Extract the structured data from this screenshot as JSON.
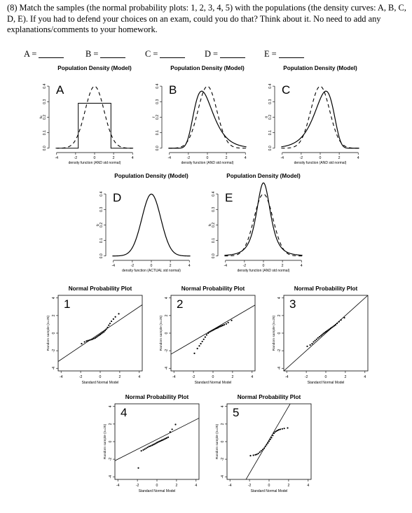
{
  "question": {
    "text": "(8) Match the samples (the normal probability plots: 1, 2, 3, 4, 5) with the populations (the density curves: A, B, C, D, E). If you had to defend your choices on an exam, could you do that? Think about it. No need to add any explanations/comments to your homework."
  },
  "answer_blanks": [
    {
      "label": "A ="
    },
    {
      "label": "B ="
    },
    {
      "label": "C ="
    },
    {
      "label": "D ="
    },
    {
      "label": "E ="
    }
  ],
  "density_panels": [
    {
      "letter": "A",
      "title": "Population Density (Model)",
      "xlabel": "density function (AND std normal)",
      "ylabel": "fu",
      "xticks": [
        "-4",
        "-2",
        "0",
        "2",
        "4"
      ],
      "yticks": [
        "0.0",
        "0.1",
        "0.2",
        "0.3",
        "0.4"
      ]
    },
    {
      "letter": "B",
      "title": "Population Density (Model)",
      "xlabel": "density function (AND std normal)",
      "ylabel": "f",
      "xticks": [
        "-4",
        "-2",
        "0",
        "2",
        "4"
      ],
      "yticks": [
        "0.0",
        "0.1",
        "0.2",
        "0.3",
        "0.4"
      ]
    },
    {
      "letter": "C",
      "title": "Population Density (Model)",
      "xlabel": "density function (AND std normal)",
      "ylabel": "fl",
      "xticks": [
        "-4",
        "-2",
        "0",
        "2",
        "4"
      ],
      "yticks": [
        "0.0",
        "0.1",
        "0.2",
        "0.3",
        "0.4"
      ]
    },
    {
      "letter": "D",
      "title": "Population Density (Model)",
      "xlabel": "density function (ACTUAL std normal)",
      "ylabel": "fz",
      "xticks": [
        "-4",
        "-2",
        "0",
        "2",
        "4"
      ],
      "yticks": [
        "0.0",
        "0.1",
        "0.2",
        "0.3",
        "0.4"
      ]
    },
    {
      "letter": "E",
      "title": "Population Density (Model)",
      "xlabel": "density function (AND std normal)",
      "ylabel": "fs",
      "xticks": [
        "-4",
        "-2",
        "0",
        "2",
        "4"
      ],
      "yticks": [
        "0.0",
        "0.1",
        "0.2",
        "0.3",
        "0.4"
      ]
    }
  ],
  "qq_panels": [
    {
      "number": "1",
      "title": "Normal Probability Plot",
      "xlabel": "Standard Normal Model",
      "ylabel": "Random sample (n=25)",
      "xticks": [
        "-4",
        "-2",
        "0",
        "2",
        "4"
      ],
      "yticks": [
        "-4",
        "-2",
        "0",
        "2",
        "4"
      ]
    },
    {
      "number": "2",
      "title": "Normal Probability Plot",
      "xlabel": "Standard Normal Model",
      "ylabel": "Random sample (n=25)",
      "xticks": [
        "-4",
        "-2",
        "0",
        "2",
        "4"
      ],
      "yticks": [
        "-4",
        "-2",
        "0",
        "2",
        "4"
      ]
    },
    {
      "number": "3",
      "title": "Normal Probability Plot",
      "xlabel": "Standard Normal Model",
      "ylabel": "Random sample (n=25)",
      "xticks": [
        "-4",
        "-2",
        "0",
        "2",
        "4"
      ],
      "yticks": [
        "-4",
        "-2",
        "0",
        "2",
        "4"
      ]
    },
    {
      "number": "4",
      "title": "Normal Probability Plot",
      "xlabel": "Standard Normal Model",
      "ylabel": "Random sample (n=25)",
      "xticks": [
        "-4",
        "-2",
        "0",
        "2",
        "4"
      ],
      "yticks": [
        "-4",
        "-2",
        "0",
        "2",
        "4"
      ]
    },
    {
      "number": "5",
      "title": "Normal Probability Plot",
      "xlabel": "Standard Normal Model",
      "ylabel": "Random sample (n=25)",
      "xticks": [
        "-4",
        "-2",
        "0",
        "2",
        "4"
      ],
      "yticks": [
        "-4",
        "-2",
        "0",
        "2",
        "4"
      ]
    }
  ],
  "chart_data": [
    {
      "type": "line",
      "panel": "A",
      "x_range": [
        -4.5,
        4.5
      ],
      "ylim": [
        0,
        0.45
      ],
      "series": [
        {
          "style": "solid",
          "values_description_points": [
            [
              -4,
              0
            ],
            [
              -2,
              0
            ],
            [
              -2,
              0.29
            ],
            [
              2,
              0.29
            ],
            [
              2,
              0
            ],
            [
              4,
              0
            ]
          ]
        },
        {
          "style": "dashed",
          "distribution": "standard normal"
        }
      ]
    },
    {
      "type": "line",
      "panel": "B",
      "x_range": [
        -4.5,
        4.5
      ],
      "ylim": [
        0,
        0.45
      ],
      "series": [
        {
          "style": "solid",
          "peak_x": -0.6,
          "peak_y": 0.37,
          "skew": "right"
        },
        {
          "style": "dashed",
          "distribution": "standard normal"
        }
      ]
    },
    {
      "type": "line",
      "panel": "C",
      "x_range": [
        -4.5,
        4.5
      ],
      "ylim": [
        0,
        0.45
      ],
      "series": [
        {
          "style": "solid",
          "peak_x": 0.6,
          "peak_y": 0.37,
          "skew": "left"
        },
        {
          "style": "dashed",
          "distribution": "standard normal"
        }
      ]
    },
    {
      "type": "line",
      "panel": "D",
      "x_range": [
        -4.5,
        4.5
      ],
      "ylim": [
        0,
        0.45
      ],
      "series": [
        {
          "style": "solid",
          "distribution": "standard normal"
        }
      ]
    },
    {
      "type": "line",
      "panel": "E",
      "x_range": [
        -4.5,
        4.5
      ],
      "ylim": [
        0,
        0.45
      ],
      "series": [
        {
          "style": "solid",
          "peak_y": 0.42,
          "tails": "heavy"
        },
        {
          "style": "dashed",
          "distribution": "standard normal"
        }
      ]
    },
    {
      "type": "scatter",
      "panel": "1",
      "xlim": [
        -4,
        4
      ],
      "ylim": [
        -4,
        4
      ],
      "points": [
        [
          -1.9,
          -1.2
        ],
        [
          -1.6,
          -1.0
        ],
        [
          -1.4,
          -0.9
        ],
        [
          -1.25,
          -0.85
        ],
        [
          -1.1,
          -0.8
        ],
        [
          -0.95,
          -0.75
        ],
        [
          -0.8,
          -0.7
        ],
        [
          -0.65,
          -0.62
        ],
        [
          -0.5,
          -0.55
        ],
        [
          -0.38,
          -0.45
        ],
        [
          -0.25,
          -0.35
        ],
        [
          -0.12,
          -0.25
        ],
        [
          0,
          -0.15
        ],
        [
          0.12,
          -0.05
        ],
        [
          0.25,
          0.05
        ],
        [
          0.38,
          0.15
        ],
        [
          0.5,
          0.3
        ],
        [
          0.62,
          0.45
        ],
        [
          0.75,
          0.65
        ],
        [
          0.88,
          0.9
        ],
        [
          1.0,
          1.1
        ],
        [
          1.15,
          1.35
        ],
        [
          1.35,
          1.6
        ],
        [
          1.55,
          1.85
        ],
        [
          1.9,
          2.2
        ]
      ],
      "ref_line": [
        [
          -4,
          -3.0
        ],
        [
          4,
          3.0
        ]
      ]
    },
    {
      "type": "scatter",
      "panel": "2",
      "xlim": [
        -4,
        4
      ],
      "ylim": [
        -4,
        4
      ],
      "points": [
        [
          -1.9,
          -2.3
        ],
        [
          -1.6,
          -1.75
        ],
        [
          -1.4,
          -1.45
        ],
        [
          -1.25,
          -1.2
        ],
        [
          -1.1,
          -0.95
        ],
        [
          -0.95,
          -0.7
        ],
        [
          -0.8,
          -0.45
        ],
        [
          -0.65,
          -0.2
        ],
        [
          -0.5,
          0.0
        ],
        [
          -0.38,
          0.12
        ],
        [
          -0.25,
          0.2
        ],
        [
          -0.12,
          0.28
        ],
        [
          0,
          0.35
        ],
        [
          0.12,
          0.42
        ],
        [
          0.25,
          0.5
        ],
        [
          0.38,
          0.56
        ],
        [
          0.5,
          0.62
        ],
        [
          0.62,
          0.7
        ],
        [
          0.75,
          0.76
        ],
        [
          0.88,
          0.82
        ],
        [
          1.0,
          0.88
        ],
        [
          1.15,
          0.95
        ],
        [
          1.35,
          1.05
        ],
        [
          1.55,
          1.2
        ],
        [
          1.9,
          1.45
        ]
      ],
      "ref_line": [
        [
          -4,
          -2.2
        ],
        [
          4,
          3.0
        ]
      ]
    },
    {
      "type": "scatter",
      "panel": "3",
      "xlim": [
        -4,
        4
      ],
      "ylim": [
        -4,
        4
      ],
      "points": [
        [
          -1.9,
          -1.5
        ],
        [
          -1.6,
          -1.35
        ],
        [
          -1.4,
          -1.2
        ],
        [
          -1.25,
          -1.0
        ],
        [
          -1.1,
          -0.85
        ],
        [
          -0.95,
          -0.7
        ],
        [
          -0.8,
          -0.55
        ],
        [
          -0.65,
          -0.42
        ],
        [
          -0.5,
          -0.3
        ],
        [
          -0.38,
          -0.18
        ],
        [
          -0.25,
          -0.05
        ],
        [
          -0.12,
          0.05
        ],
        [
          0,
          0.15
        ],
        [
          0.12,
          0.25
        ],
        [
          0.25,
          0.35
        ],
        [
          0.38,
          0.45
        ],
        [
          0.5,
          0.55
        ],
        [
          0.62,
          0.65
        ],
        [
          0.75,
          0.75
        ],
        [
          0.88,
          0.85
        ],
        [
          1.0,
          0.95
        ],
        [
          1.15,
          1.1
        ],
        [
          1.35,
          1.3
        ],
        [
          1.55,
          1.5
        ],
        [
          1.9,
          1.75
        ]
      ],
      "ref_line": [
        [
          -4,
          -4.0
        ],
        [
          4,
          4.0
        ]
      ]
    },
    {
      "type": "scatter",
      "panel": "4",
      "xlim": [
        -4,
        4
      ],
      "ylim": [
        -4,
        4
      ],
      "points": [
        [
          -1.9,
          -3.0
        ],
        [
          -1.6,
          -1.05
        ],
        [
          -1.4,
          -0.95
        ],
        [
          -1.25,
          -0.85
        ],
        [
          -1.1,
          -0.75
        ],
        [
          -0.95,
          -0.65
        ],
        [
          -0.8,
          -0.55
        ],
        [
          -0.65,
          -0.5
        ],
        [
          -0.5,
          -0.42
        ],
        [
          -0.38,
          -0.35
        ],
        [
          -0.25,
          -0.28
        ],
        [
          -0.12,
          -0.2
        ],
        [
          0,
          -0.12
        ],
        [
          0.12,
          -0.05
        ],
        [
          0.25,
          0.02
        ],
        [
          0.38,
          0.08
        ],
        [
          0.5,
          0.15
        ],
        [
          0.62,
          0.2
        ],
        [
          0.75,
          0.28
        ],
        [
          0.88,
          0.35
        ],
        [
          1.0,
          0.42
        ],
        [
          1.15,
          0.5
        ],
        [
          1.35,
          1.1
        ],
        [
          1.55,
          1.4
        ],
        [
          1.9,
          1.95
        ]
      ],
      "ref_line": [
        [
          -4,
          -2.0
        ],
        [
          4,
          2.5
        ]
      ]
    },
    {
      "type": "scatter",
      "panel": "5",
      "xlim": [
        -4,
        4
      ],
      "ylim": [
        -4,
        4
      ],
      "points": [
        [
          -1.9,
          -1.6
        ],
        [
          -1.6,
          -1.55
        ],
        [
          -1.4,
          -1.5
        ],
        [
          -1.25,
          -1.45
        ],
        [
          -1.1,
          -1.35
        ],
        [
          -0.95,
          -1.2
        ],
        [
          -0.8,
          -1.05
        ],
        [
          -0.65,
          -0.9
        ],
        [
          -0.5,
          -0.75
        ],
        [
          -0.38,
          -0.55
        ],
        [
          -0.25,
          -0.35
        ],
        [
          -0.12,
          -0.15
        ],
        [
          0,
          0.05
        ],
        [
          0.12,
          0.25
        ],
        [
          0.25,
          0.45
        ],
        [
          0.38,
          0.7
        ],
        [
          0.5,
          0.95
        ],
        [
          0.62,
          1.1
        ],
        [
          0.75,
          1.2
        ],
        [
          0.88,
          1.28
        ],
        [
          1.0,
          1.35
        ],
        [
          1.15,
          1.4
        ],
        [
          1.35,
          1.45
        ],
        [
          1.55,
          1.5
        ],
        [
          1.9,
          1.55
        ]
      ],
      "ref_line": [
        [
          -2.2,
          -4.0
        ],
        [
          2.0,
          4.0
        ]
      ]
    }
  ]
}
